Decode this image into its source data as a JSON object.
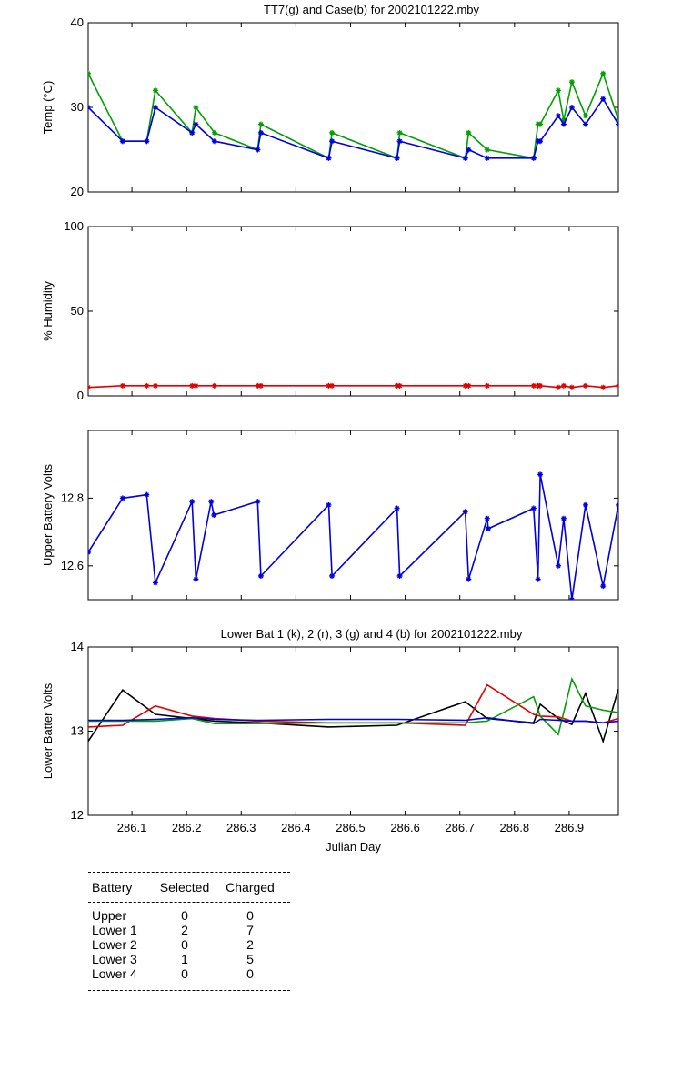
{
  "chart_data": [
    {
      "type": "line",
      "title": "TT7(g) and Case(b) for 2002101222.mby",
      "xlabel": "",
      "ylabel": "Temp  (°C)",
      "xlim": [
        286.02,
        286.99
      ],
      "ylim": [
        20,
        40
      ],
      "yticks": [
        20,
        30,
        40
      ],
      "grid": false,
      "series": [
        {
          "name": "TT7",
          "color": "#00a000",
          "marker": "star",
          "x": [
            286.02,
            286.083,
            286.127,
            286.143,
            286.21,
            286.217,
            286.251,
            286.33,
            286.336,
            286.46,
            286.466,
            286.585,
            286.59,
            286.71,
            286.716,
            286.75,
            286.835,
            286.843,
            286.847,
            286.88,
            286.89,
            286.905,
            286.93,
            286.962,
            286.99
          ],
          "y": [
            34,
            26,
            26,
            32,
            27,
            30,
            27,
            25,
            28,
            24,
            27,
            24,
            27,
            24,
            27,
            25,
            24,
            28,
            28,
            32,
            28.5,
            33,
            29,
            34,
            28.5
          ]
        },
        {
          "name": "Case",
          "color": "#0000e0",
          "marker": "star",
          "x": [
            286.02,
            286.083,
            286.127,
            286.143,
            286.21,
            286.217,
            286.251,
            286.33,
            286.336,
            286.46,
            286.466,
            286.585,
            286.59,
            286.71,
            286.716,
            286.75,
            286.835,
            286.843,
            286.847,
            286.88,
            286.89,
            286.905,
            286.93,
            286.962,
            286.99
          ],
          "y": [
            30,
            26,
            26,
            30,
            27,
            28,
            26,
            25,
            27,
            24,
            26,
            24,
            26,
            24,
            25,
            24,
            24,
            26,
            26,
            29,
            28,
            30,
            28,
            31,
            28
          ]
        }
      ]
    },
    {
      "type": "line",
      "title": "",
      "xlabel": "",
      "ylabel": "% Humidity",
      "xlim": [
        286.02,
        286.99
      ],
      "ylim": [
        0,
        100
      ],
      "yticks": [
        0,
        50,
        100
      ],
      "grid": false,
      "series": [
        {
          "name": "",
          "color": "#e00000",
          "marker": "star",
          "x": [
            286.02,
            286.083,
            286.127,
            286.143,
            286.21,
            286.217,
            286.251,
            286.33,
            286.336,
            286.46,
            286.466,
            286.585,
            286.59,
            286.71,
            286.716,
            286.75,
            286.835,
            286.843,
            286.847,
            286.88,
            286.89,
            286.905,
            286.93,
            286.962,
            286.99
          ],
          "y": [
            5,
            6,
            6,
            6,
            6,
            6,
            6,
            6,
            6,
            6,
            6,
            6,
            6,
            6,
            6,
            6,
            6,
            6,
            6,
            5,
            6,
            5,
            6,
            5,
            6
          ]
        }
      ]
    },
    {
      "type": "line",
      "title": "",
      "xlabel": "",
      "ylabel": "Upper Battery Volts",
      "xlim": [
        286.02,
        286.99
      ],
      "ylim": [
        12.5,
        13.0
      ],
      "yticks": [
        12.6,
        12.8
      ],
      "grid": false,
      "series": [
        {
          "name": "",
          "color": "#0000e0",
          "marker": "star",
          "x": [
            286.02,
            286.083,
            286.127,
            286.143,
            286.21,
            286.217,
            286.245,
            286.25,
            286.33,
            286.336,
            286.46,
            286.466,
            286.585,
            286.59,
            286.71,
            286.716,
            286.75,
            286.752,
            286.835,
            286.843,
            286.847,
            286.88,
            286.89,
            286.905,
            286.93,
            286.962,
            286.99
          ],
          "y": [
            12.64,
            12.8,
            12.81,
            12.55,
            12.79,
            12.56,
            12.79,
            12.75,
            12.79,
            12.57,
            12.78,
            12.57,
            12.77,
            12.57,
            12.76,
            12.56,
            12.74,
            12.71,
            12.77,
            12.56,
            12.87,
            12.6,
            12.74,
            12.5,
            12.78,
            12.54,
            12.78
          ]
        }
      ]
    },
    {
      "type": "line",
      "title": "Lower Bat 1 (k), 2 (r), 3 (g) and 4 (b) for 2002101222.mby",
      "xlabel": "Julian Day",
      "ylabel": "Lower Batter Volts",
      "xlim": [
        286.02,
        286.99
      ],
      "ylim": [
        12,
        14
      ],
      "yticks": [
        12,
        13,
        14
      ],
      "xticks": [
        286.1,
        286.2,
        286.3,
        286.4,
        286.5,
        286.6,
        286.7,
        286.8,
        286.9
      ],
      "grid": false,
      "series": [
        {
          "name": "",
          "color": "#000000",
          "x": [
            286.02,
            286.083,
            286.143,
            286.21,
            286.251,
            286.33,
            286.46,
            286.585,
            286.71,
            286.75,
            286.835,
            286.847,
            286.88,
            286.905,
            286.93,
            286.962,
            286.99
          ],
          "y": [
            12.88,
            13.49,
            13.2,
            13.15,
            13.12,
            13.1,
            13.05,
            13.07,
            13.35,
            13.15,
            13.1,
            13.32,
            13.15,
            13.08,
            13.45,
            12.88,
            13.5
          ]
        },
        {
          "name": "",
          "color": "#e00000",
          "x": [
            286.02,
            286.083,
            286.143,
            286.21,
            286.251,
            286.33,
            286.46,
            286.585,
            286.71,
            286.75,
            286.835,
            286.847,
            286.88,
            286.905,
            286.93,
            286.962,
            286.99
          ],
          "y": [
            13.05,
            13.07,
            13.3,
            13.18,
            13.15,
            13.12,
            13.1,
            13.1,
            13.07,
            13.55,
            13.2,
            13.18,
            13.17,
            13.12,
            13.12,
            13.1,
            13.15
          ]
        },
        {
          "name": "",
          "color": "#00a000",
          "x": [
            286.02,
            286.083,
            286.143,
            286.21,
            286.251,
            286.33,
            286.46,
            286.585,
            286.71,
            286.75,
            286.835,
            286.847,
            286.88,
            286.905,
            286.93,
            286.962,
            286.99
          ],
          "y": [
            13.12,
            13.12,
            13.12,
            13.15,
            13.09,
            13.09,
            13.1,
            13.1,
            13.1,
            13.12,
            13.41,
            13.18,
            12.96,
            13.62,
            13.3,
            13.25,
            13.22
          ]
        },
        {
          "name": "",
          "color": "#0000e0",
          "x": [
            286.02,
            286.083,
            286.143,
            286.21,
            286.251,
            286.33,
            286.46,
            286.585,
            286.71,
            286.75,
            286.835,
            286.847,
            286.88,
            286.905,
            286.93,
            286.962,
            286.99
          ],
          "y": [
            13.13,
            13.13,
            13.14,
            13.16,
            13.14,
            13.13,
            13.14,
            13.14,
            13.13,
            13.16,
            13.09,
            13.14,
            13.13,
            13.12,
            13.12,
            13.1,
            13.12
          ]
        }
      ]
    }
  ],
  "table": {
    "headers": [
      "Battery",
      "Selected",
      "Charged"
    ],
    "rows": [
      [
        "Upper",
        "0",
        "0"
      ],
      [
        "Lower 1",
        "2",
        "7"
      ],
      [
        "Lower 2",
        "0",
        "2"
      ],
      [
        "Lower 3",
        "1",
        "5"
      ],
      [
        "Lower 4",
        "0",
        "0"
      ]
    ]
  }
}
